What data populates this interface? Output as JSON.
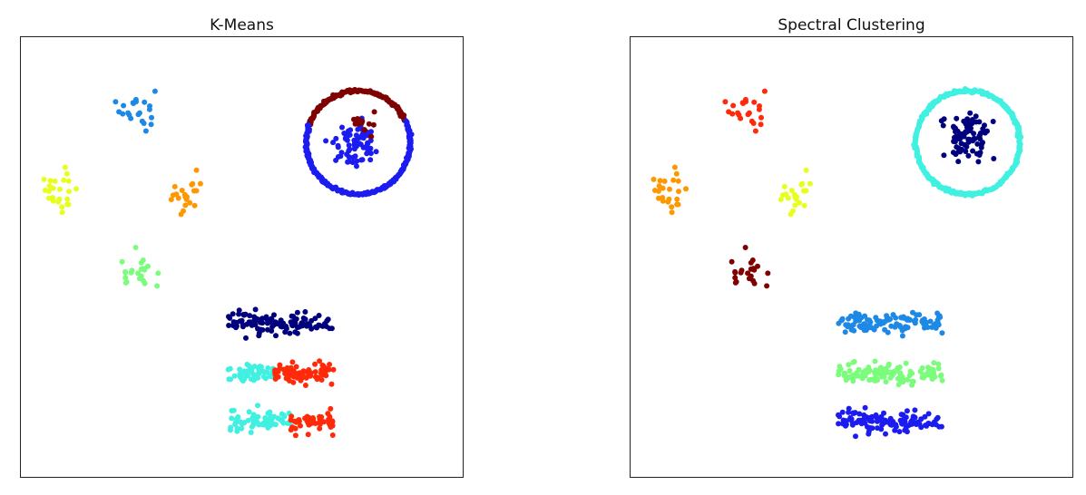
{
  "chart_data": [
    {
      "type": "scatter",
      "title": "K-Means",
      "xlabel": "",
      "ylabel": "",
      "axes_visible": false,
      "grid": false,
      "xlim": [
        0,
        1
      ],
      "ylim": [
        0,
        1
      ],
      "clusters": [
        {
          "shape": "blob",
          "center": [
            0.265,
            0.838
          ],
          "spread": [
            0.02,
            0.025
          ],
          "n": 22,
          "color": "#1e88e5"
        },
        {
          "shape": "blob",
          "center": [
            0.088,
            0.645
          ],
          "spread": [
            0.022,
            0.025
          ],
          "n": 24,
          "color": "#e6ff1f"
        },
        {
          "shape": "blob",
          "center": [
            0.378,
            0.648
          ],
          "spread": [
            0.022,
            0.025
          ],
          "n": 22,
          "color": "#ff9800"
        },
        {
          "shape": "blob",
          "center": [
            0.262,
            0.468
          ],
          "spread": [
            0.02,
            0.025
          ],
          "n": 22,
          "color": "#7cfc7c"
        },
        {
          "shape": "arc",
          "center": [
            0.765,
            0.76
          ],
          "radius": [
            0.118,
            0.118
          ],
          "from": 25,
          "to": 160,
          "n": 120,
          "color": "#7f0000"
        },
        {
          "shape": "arc",
          "center": [
            0.765,
            0.76
          ],
          "radius": [
            0.118,
            0.118
          ],
          "from": 160,
          "to": 385,
          "n": 200,
          "color": "#1c1cf0"
        },
        {
          "shape": "blob",
          "center": [
            0.762,
            0.76
          ],
          "spread": [
            0.025,
            0.03
          ],
          "n": 70,
          "color": "#1c1cf0"
        },
        {
          "shape": "blob",
          "center": [
            0.778,
            0.8
          ],
          "spread": [
            0.015,
            0.012
          ],
          "n": 14,
          "color": "#7f0000"
        },
        {
          "shape": "band",
          "x": [
            0.47,
            0.71
          ],
          "y": 0.349,
          "jitter": 0.012,
          "n": 110,
          "color": "#00007f"
        },
        {
          "shape": "band",
          "x": [
            0.47,
            0.575
          ],
          "y": 0.234,
          "jitter": 0.01,
          "n": 50,
          "color": "#40f0e0"
        },
        {
          "shape": "band",
          "x": [
            0.575,
            0.71
          ],
          "y": 0.234,
          "jitter": 0.012,
          "n": 70,
          "color": "#ff2a0a"
        },
        {
          "shape": "band",
          "x": [
            0.47,
            0.61
          ],
          "y": 0.125,
          "jitter": 0.012,
          "n": 65,
          "color": "#40f0e0"
        },
        {
          "shape": "band",
          "x": [
            0.61,
            0.71
          ],
          "y": 0.125,
          "jitter": 0.012,
          "n": 50,
          "color": "#ff2a0a"
        }
      ]
    },
    {
      "type": "scatter",
      "title": "Spectral Clustering",
      "xlabel": "",
      "ylabel": "",
      "axes_visible": false,
      "grid": false,
      "xlim": [
        0,
        1
      ],
      "ylim": [
        0,
        1
      ],
      "clusters": [
        {
          "shape": "blob",
          "center": [
            0.265,
            0.838
          ],
          "spread": [
            0.02,
            0.025
          ],
          "n": 22,
          "color": "#ff2a0a"
        },
        {
          "shape": "blob",
          "center": [
            0.088,
            0.645
          ],
          "spread": [
            0.022,
            0.025
          ],
          "n": 24,
          "color": "#ff9800"
        },
        {
          "shape": "blob",
          "center": [
            0.378,
            0.648
          ],
          "spread": [
            0.022,
            0.025
          ],
          "n": 22,
          "color": "#e6ff1f"
        },
        {
          "shape": "blob",
          "center": [
            0.262,
            0.468
          ],
          "spread": [
            0.02,
            0.025
          ],
          "n": 22,
          "color": "#7f0000"
        },
        {
          "shape": "arc",
          "center": [
            0.765,
            0.76
          ],
          "radius": [
            0.118,
            0.118
          ],
          "from": 0,
          "to": 360,
          "n": 320,
          "color": "#40f0e0"
        },
        {
          "shape": "blob",
          "center": [
            0.765,
            0.773
          ],
          "spread": [
            0.025,
            0.032
          ],
          "n": 80,
          "color": "#00007f"
        },
        {
          "shape": "band",
          "x": [
            0.47,
            0.71
          ],
          "y": 0.349,
          "jitter": 0.012,
          "n": 110,
          "color": "#1e88e5"
        },
        {
          "shape": "band",
          "x": [
            0.47,
            0.71
          ],
          "y": 0.234,
          "jitter": 0.012,
          "n": 120,
          "color": "#7cfc7c"
        },
        {
          "shape": "band",
          "x": [
            0.47,
            0.71
          ],
          "y": 0.125,
          "jitter": 0.012,
          "n": 115,
          "color": "#1c1cf0"
        }
      ]
    }
  ]
}
